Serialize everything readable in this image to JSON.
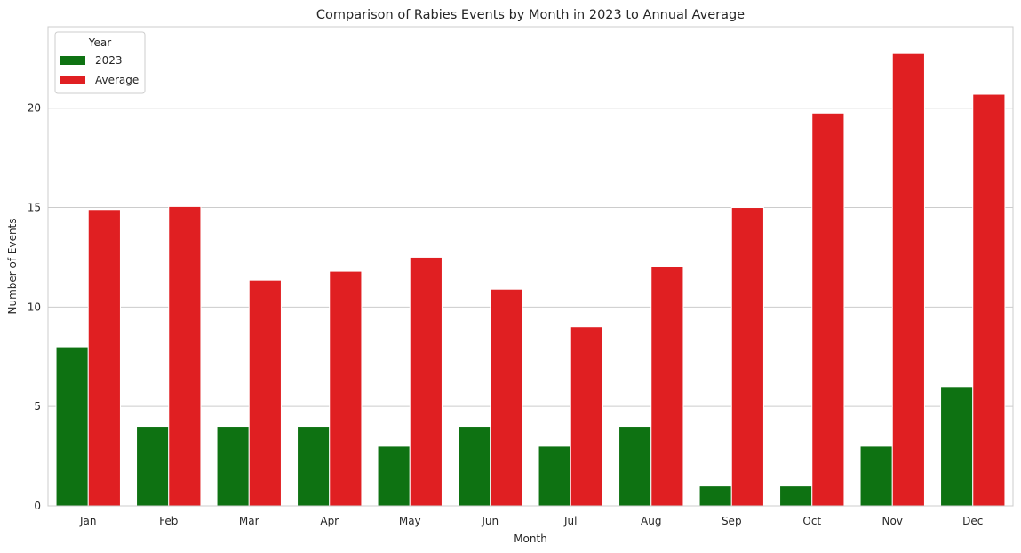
{
  "chart_data": {
    "type": "bar",
    "title": "Comparison of Rabies Events by Month in 2023 to Annual Average",
    "xlabel": "Month",
    "ylabel": "Number of Events",
    "categories": [
      "Jan",
      "Feb",
      "Mar",
      "Apr",
      "May",
      "Jun",
      "Jul",
      "Aug",
      "Sep",
      "Oct",
      "Nov",
      "Dec"
    ],
    "series": [
      {
        "name": "2023",
        "color": "#0e7212",
        "values": [
          8,
          4,
          4,
          4,
          3,
          4,
          3,
          4,
          1,
          1,
          3,
          6
        ]
      },
      {
        "name": "Average",
        "color": "#e01f22",
        "values": [
          14.9,
          15.05,
          11.35,
          11.8,
          12.5,
          10.9,
          9.0,
          12.05,
          15.0,
          19.75,
          22.75,
          20.7
        ]
      }
    ],
    "ylim": [
      0,
      24.1
    ],
    "yticks": [
      0,
      5,
      10,
      15,
      20
    ],
    "grid": "horizontal",
    "legend": {
      "title": "Year",
      "placement": "top-left"
    }
  }
}
